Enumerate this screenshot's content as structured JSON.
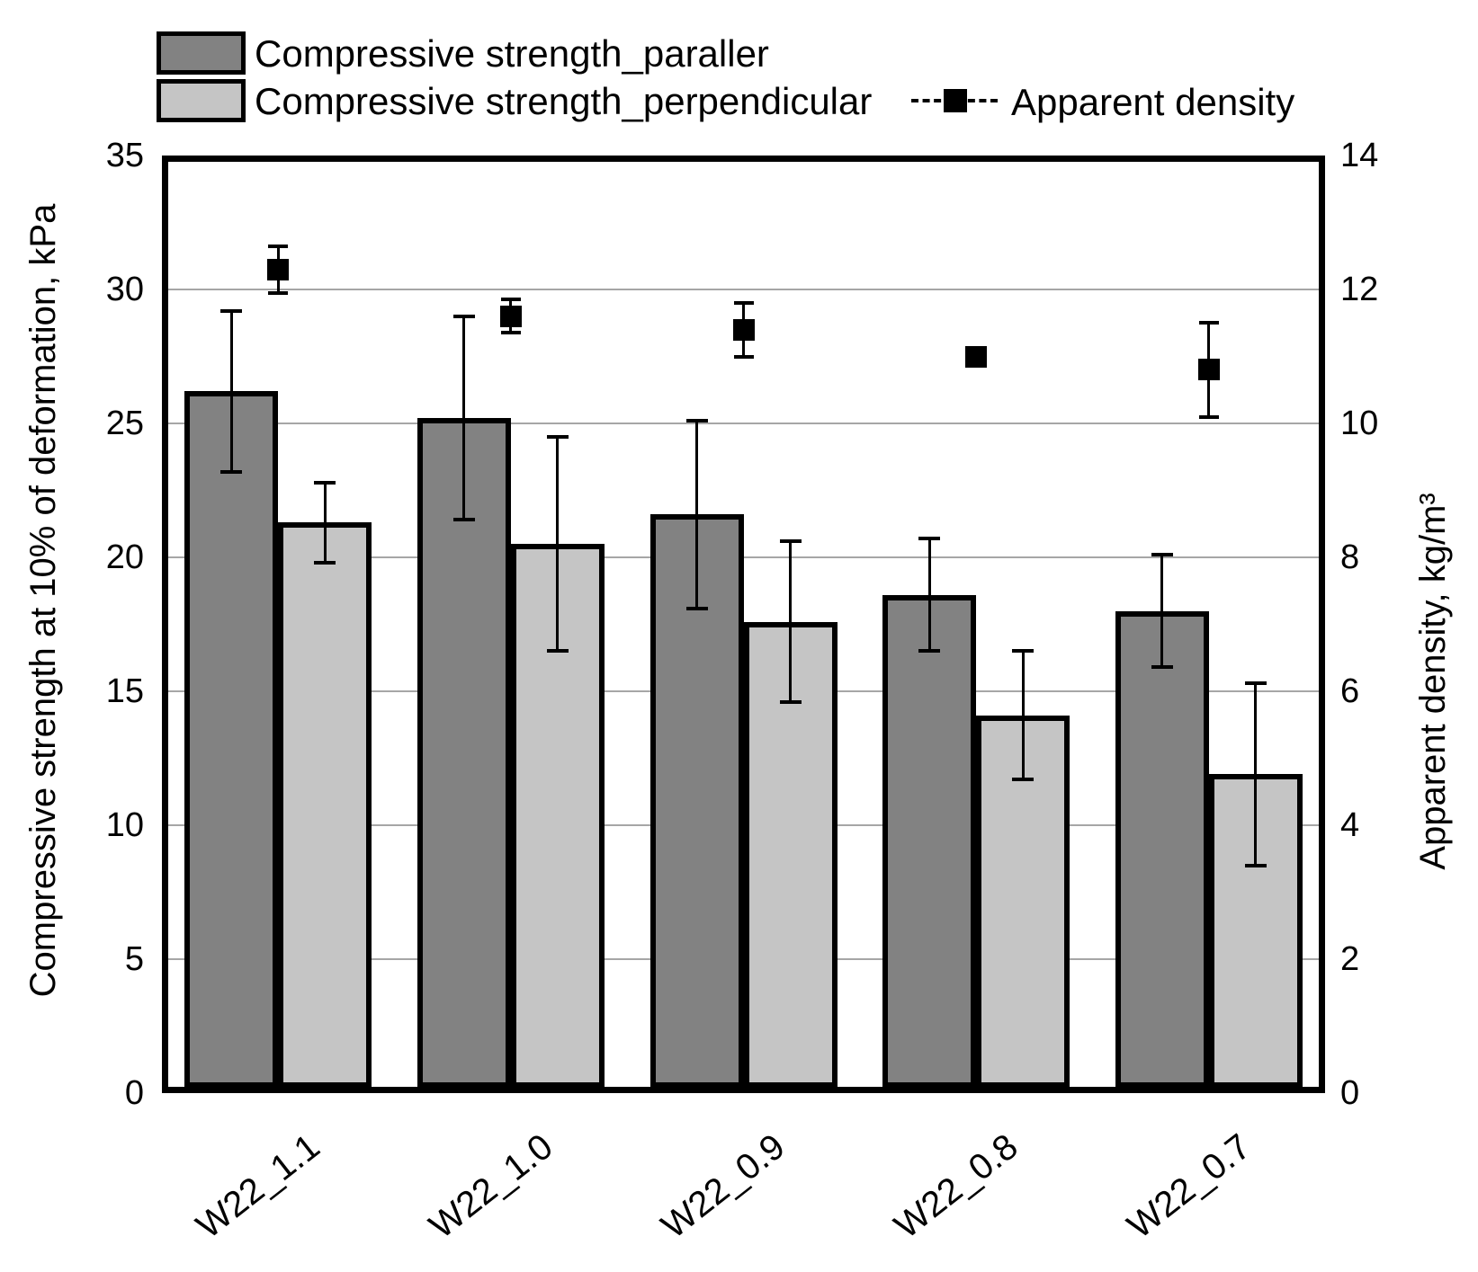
{
  "colors": {
    "background": "#ffffff",
    "frame": "#000000",
    "gridline": "#a6a6a6",
    "bar_parallel": "#828282",
    "bar_perpendicular": "#c5c5c5",
    "density_marker": "#000000"
  },
  "chart_data": {
    "type": "bar",
    "subtype": "grouped bars with dual axis and point series",
    "categories": [
      "W22_1.1",
      "W22_1.0",
      "W22_0.9",
      "W22_0.8",
      "W22_0.7"
    ],
    "series": [
      {
        "name": "Compressive strength_paraller",
        "type": "bar",
        "axis": "left",
        "color": "#828282",
        "values": [
          26.2,
          25.2,
          21.6,
          18.6,
          18.0
        ],
        "error_bars": [
          3.0,
          3.8,
          3.5,
          2.1,
          2.1
        ]
      },
      {
        "name": "Compressive strength_perpendicular",
        "type": "bar",
        "axis": "left",
        "color": "#c5c5c5",
        "values": [
          21.3,
          20.5,
          17.6,
          14.1,
          11.9
        ],
        "error_bars": [
          1.5,
          4.0,
          3.0,
          2.4,
          3.4
        ]
      },
      {
        "name": "Apparent density",
        "type": "point",
        "marker": "filled-square",
        "line_style": "dashed",
        "axis": "right",
        "color": "#000000",
        "values": [
          12.3,
          11.6,
          11.4,
          11.0,
          10.8
        ],
        "error_bars": [
          0.35,
          0.25,
          0.4,
          0,
          0.7
        ]
      }
    ],
    "left_axis": {
      "label": "Compressive strength at 10% of deformation, kPa",
      "min": 0,
      "max": 35,
      "ticks": [
        0,
        5,
        10,
        15,
        20,
        25,
        30,
        35
      ]
    },
    "right_axis": {
      "label": "Apparent density, kg/m³",
      "min": 0,
      "max": 14,
      "ticks": [
        0,
        2,
        4,
        6,
        8,
        10,
        12,
        14
      ]
    },
    "grid": "horizontal",
    "legend_position": "top-left"
  }
}
